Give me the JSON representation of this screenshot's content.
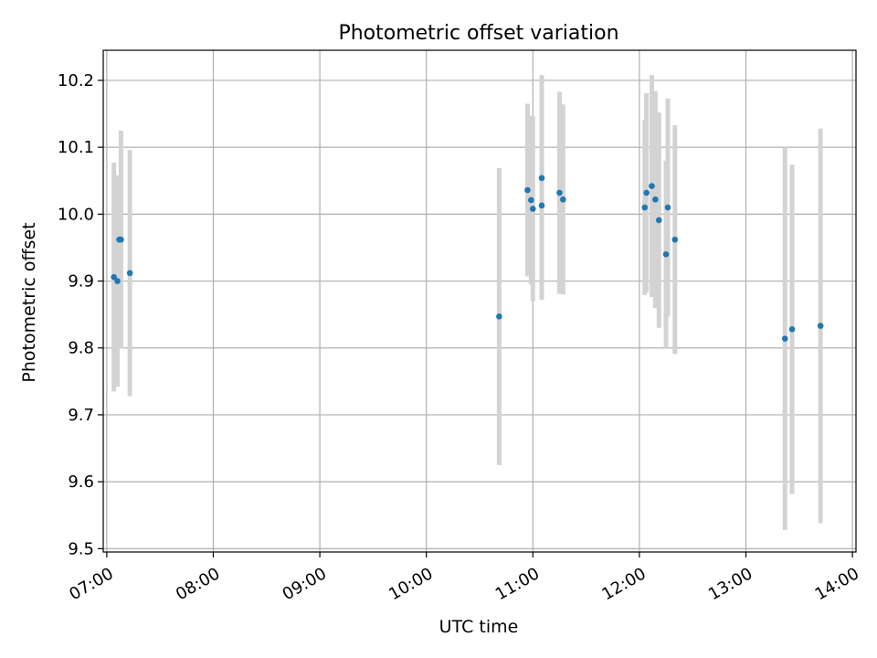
{
  "chart_data": {
    "type": "scatter",
    "title": "Photometric offset variation",
    "xlabel": "UTC time",
    "ylabel": "Photometric offset",
    "grid": true,
    "xlim": [
      "06:58",
      "14:02"
    ],
    "ylim": [
      9.495,
      10.245
    ],
    "x_ticks": [
      "07:00",
      "08:00",
      "09:00",
      "10:00",
      "11:00",
      "12:00",
      "13:00",
      "14:00"
    ],
    "y_ticks": [
      9.5,
      9.6,
      9.7,
      9.8,
      9.9,
      10.0,
      10.1,
      10.2
    ],
    "colors": {
      "points": "#1f77b4",
      "errorbars": "#d3d3d3"
    },
    "points": [
      {
        "x": "07:04",
        "y": 9.906,
        "err": 0.171
      },
      {
        "x": "07:06",
        "y": 9.9,
        "err": 0.158
      },
      {
        "x": "07:07",
        "y": 9.962,
        "err": 0.094
      },
      {
        "x": "07:08",
        "y": 9.962,
        "err": 0.163
      },
      {
        "x": "07:13",
        "y": 9.912,
        "err": 0.184
      },
      {
        "x": "10:41",
        "y": 9.847,
        "err": 0.222
      },
      {
        "x": "10:57",
        "y": 10.036,
        "err": 0.129
      },
      {
        "x": "10:59",
        "y": 10.021,
        "err": 0.126
      },
      {
        "x": "11:00",
        "y": 10.008,
        "err": 0.138
      },
      {
        "x": "11:05",
        "y": 10.054,
        "err": 0.154
      },
      {
        "x": "11:05",
        "y": 10.013,
        "err": 0.141
      },
      {
        "x": "11:15",
        "y": 10.032,
        "err": 0.151
      },
      {
        "x": "11:17",
        "y": 10.022,
        "err": 0.142
      },
      {
        "x": "12:03",
        "y": 10.01,
        "err": 0.131
      },
      {
        "x": "12:04",
        "y": 10.032,
        "err": 0.149
      },
      {
        "x": "12:07",
        "y": 10.042,
        "err": 0.166
      },
      {
        "x": "12:09",
        "y": 10.022,
        "err": 0.162
      },
      {
        "x": "12:11",
        "y": 9.991,
        "err": 0.161
      },
      {
        "x": "12:15",
        "y": 9.94,
        "err": 0.14
      },
      {
        "x": "12:16",
        "y": 10.01,
        "err": 0.163
      },
      {
        "x": "12:20",
        "y": 9.962,
        "err": 0.171
      },
      {
        "x": "13:22",
        "y": 9.814,
        "err": 0.286
      },
      {
        "x": "13:26",
        "y": 9.828,
        "err": 0.246
      },
      {
        "x": "13:42",
        "y": 9.833,
        "err": 0.295
      }
    ]
  }
}
